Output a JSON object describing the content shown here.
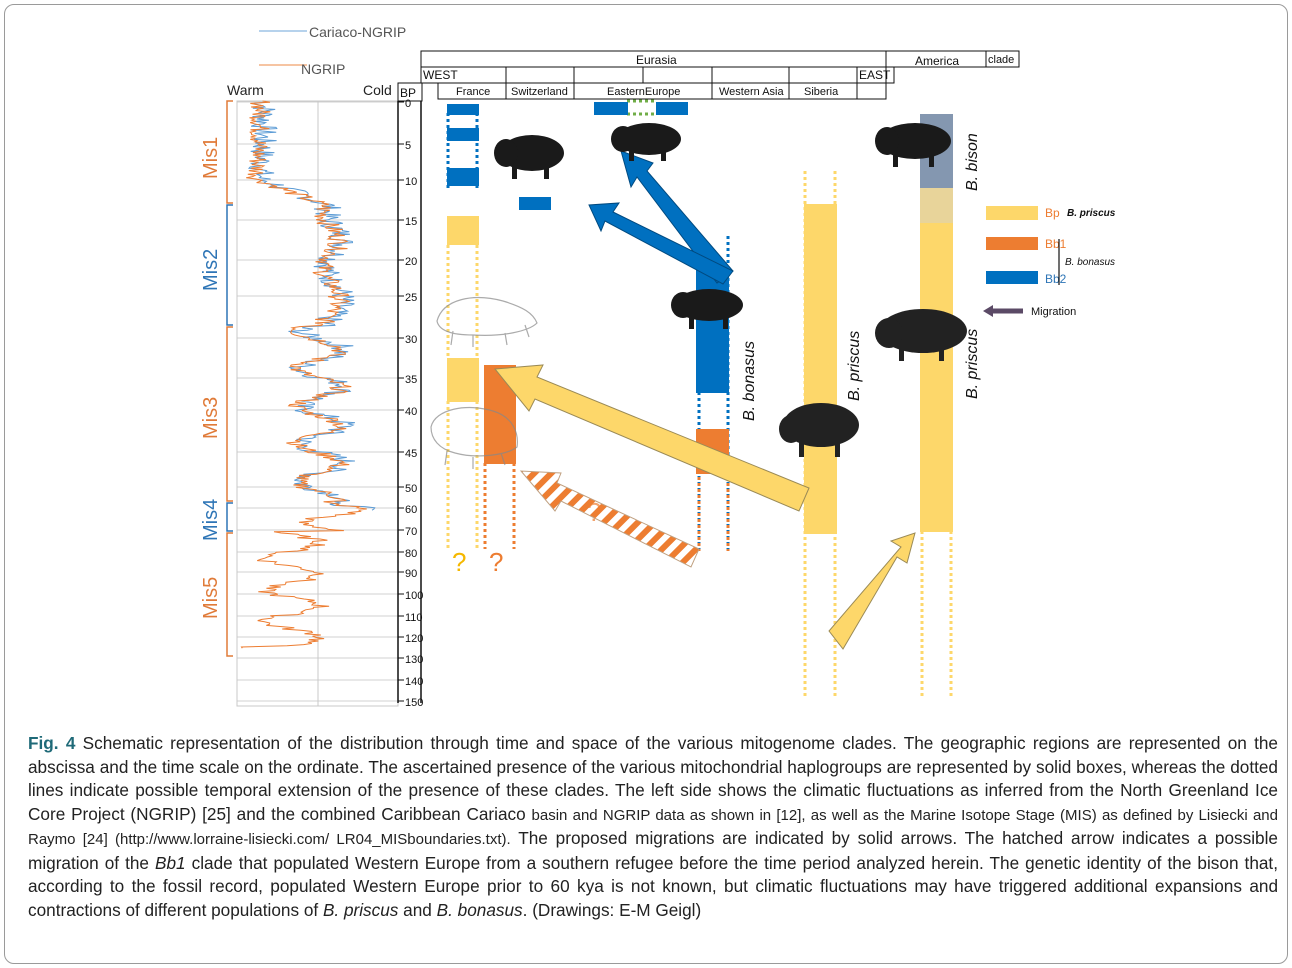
{
  "legend_top": {
    "cariaco_label": "Cariaco-NGRIP",
    "ngrip_label": "NGRIP"
  },
  "climate_axis": {
    "warm": "Warm",
    "cold": "Cold",
    "bp": "BP"
  },
  "mis_labels": [
    "Mis1",
    "Mis2",
    "Mis3",
    "Mis4",
    "Mis5"
  ],
  "time_ticks": [
    "0",
    "5",
    "10",
    "15",
    "20",
    "25",
    "30",
    "35",
    "40",
    "45",
    "50",
    "60",
    "70",
    "80",
    "90",
    "100",
    "110",
    "120",
    "130",
    "140",
    "150"
  ],
  "geo_header": {
    "eurasia": "Eurasia",
    "america": "America",
    "clade": "clade",
    "west": "WEST",
    "east": "EAST",
    "regions": [
      "France",
      "Switzerland",
      "EasternEurope",
      "Western Asia",
      "Siberia"
    ]
  },
  "species_labels": {
    "bison": "B. bison",
    "bonasus": "B. bonasus",
    "priscus_siberia": "B. priscus",
    "priscus_america": "B. priscus"
  },
  "clade_legend": {
    "bp": "Bp",
    "bp_species": "B. priscus",
    "bb1": "Bb1",
    "bb2": "Bb2",
    "bb_species": "B. bonasus",
    "migration": "Migration"
  },
  "question_marks": [
    "?",
    "?",
    "?"
  ],
  "colors": {
    "bp": "#fdd76a",
    "bb1": "#ed7d31",
    "bb2": "#0070c0",
    "bison": "#8497b0",
    "arrow_yellow": "#fdd76a",
    "arrow_blue": "#0070c0",
    "migration": "#5b4a66",
    "ngrip": "#ed7d31",
    "cariaco": "#5b9bd5",
    "mis_orange": "#e07b39",
    "mis_blue": "#2e75b6"
  },
  "caption": {
    "label": "Fig. 4",
    "p1": " Schematic representation of the distribution through time and space of the various mitogenome clades. The geographic regions are represented on the abscissa and the time scale on the ordinate. The ascertained presence of the various mitochondrial haplogroups are represented by solid boxes, whereas the dotted lines indicate possible temporal extension of the presence of these clades. The left side shows the climatic fluctuations as inferred from the North Greenland Ice Core Project (NGRIP) [25] and the combined Caribbean Cariaco",
    "p2_small": "basin and NGRIP data as shown in [12], as well as the Marine Isotope Stage (MIS) as defined by Lisiecki and Raymo [24] (http://www.lorraine-lisiecki.com/ LR04_MISboundaries.txt).",
    "p3": " The proposed migrations are indicated by solid arrows. The hatched arrow indicates a possible migration of the ",
    "bb1_italic": "Bb1",
    "p4": " clade that populated Western Europe from a southern refugee before the time period analyzed herein. The genetic identity of the bison that, according to the fossil record, populated Western Europe prior to 60 kya is not known, but climatic fluctuations may have triggered additional expansions and contractions of different populations of ",
    "priscus_italic": "B. priscus",
    "and": " and ",
    "bonasus_italic": "B. bonasus",
    "p5": ". (Drawings: E-M Geigl)"
  }
}
